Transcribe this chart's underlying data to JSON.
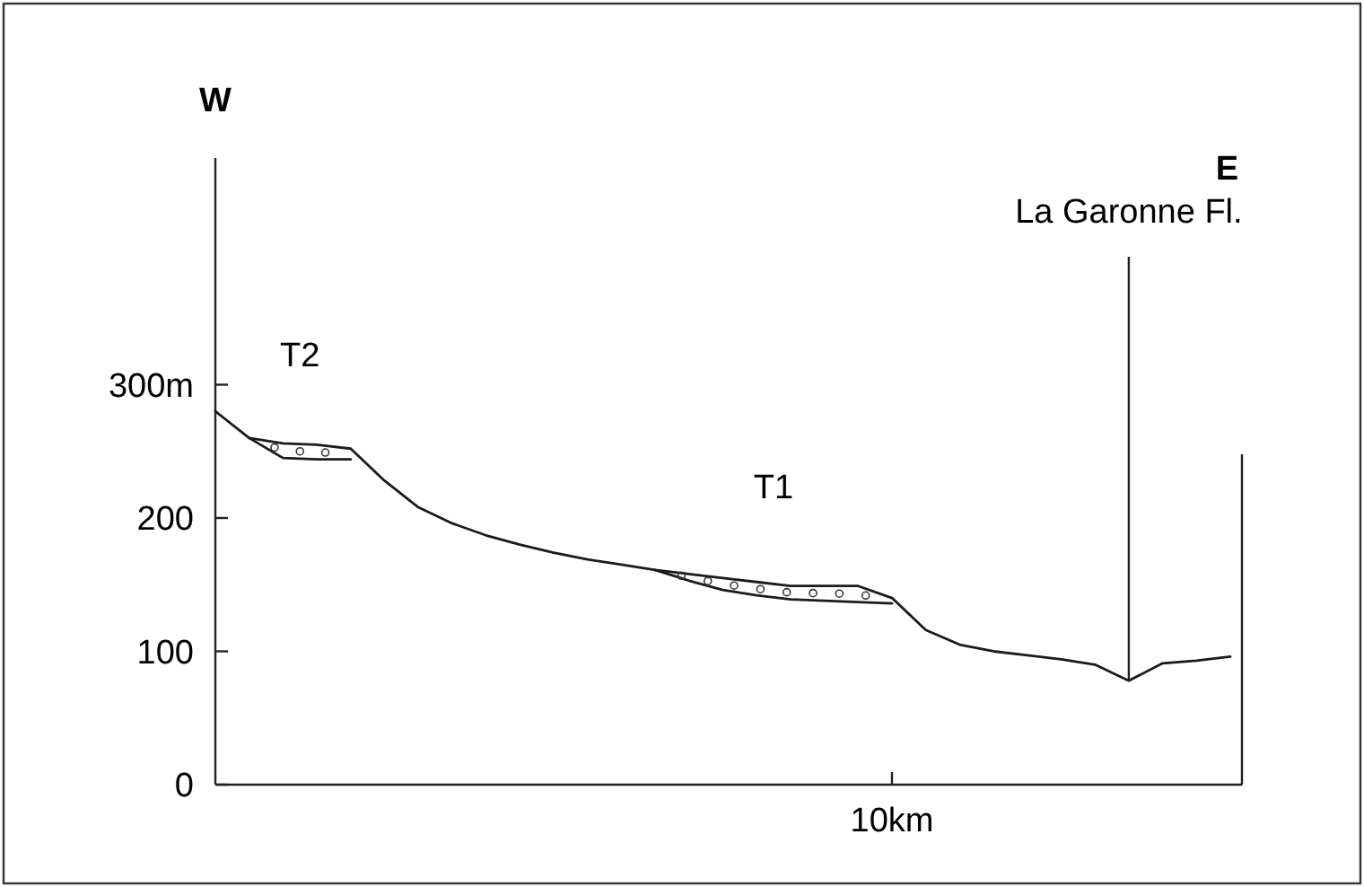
{
  "chart_data": {
    "type": "line",
    "categories": [
      null,
      null,
      null,
      null,
      null,
      null,
      null,
      null,
      null,
      null,
      null,
      null,
      null,
      null,
      null,
      null,
      null,
      null,
      null,
      null,
      "10km",
      null,
      null,
      null,
      null,
      null,
      null,
      null,
      null,
      null,
      null
    ],
    "ylim": [
      0,
      470
    ],
    "yticks": [
      0,
      100,
      200,
      {
        "value": 300,
        "label": "300m"
      }
    ],
    "grid": false,
    "marker": "none",
    "line_style": "solid",
    "series": [
      {
        "color": "#1a1a1a",
        "values": [
          280,
          260,
          256,
          255,
          252,
          228,
          208,
          196,
          187,
          180,
          174,
          169,
          165,
          161,
          158,
          155,
          152,
          149,
          149,
          149,
          140,
          116,
          105,
          100,
          97,
          94,
          90,
          78,
          91,
          93,
          96
        ]
      },
      {
        "color": "#1a1a1a",
        "values": [
          null,
          260,
          245,
          244,
          244,
          null,
          null,
          null,
          null,
          null,
          null,
          null,
          null,
          null,
          null,
          null,
          null,
          null,
          null,
          null,
          null,
          null,
          null,
          null,
          null,
          null,
          null,
          null,
          null,
          null,
          null
        ]
      },
      {
        "color": "#1a1a1a",
        "values": [
          null,
          null,
          null,
          null,
          null,
          null,
          null,
          null,
          null,
          null,
          null,
          null,
          null,
          161,
          153,
          146,
          142,
          139,
          138,
          137,
          136,
          null,
          null,
          null,
          null,
          null,
          null,
          null,
          null,
          null,
          null
        ]
      }
    ],
    "annotations": [
      "W",
      "E",
      "La Garonne Fl.",
      "T2",
      "T1"
    ]
  }
}
